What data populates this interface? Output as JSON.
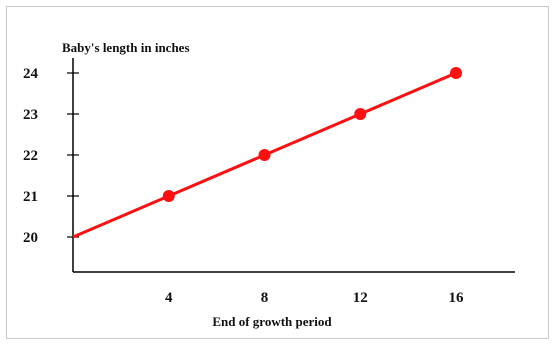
{
  "chart_data": {
    "type": "line",
    "title": "Baby's length in inches",
    "xlabel": "End of growth period",
    "ylabel": "",
    "x": [
      0,
      4,
      8,
      12,
      16
    ],
    "series": [
      {
        "values": [
          20,
          21,
          22,
          23,
          24
        ],
        "color": "#ff1010",
        "markers": [
          false,
          true,
          true,
          true,
          true
        ]
      }
    ],
    "xticks": [
      "4",
      "8",
      "12",
      "16"
    ],
    "yticks": [
      "20",
      "21",
      "22",
      "23",
      "24"
    ],
    "xlim": [
      0,
      18.5
    ],
    "ylim": [
      19,
      24.4
    ],
    "grid": false,
    "legend": "none"
  }
}
